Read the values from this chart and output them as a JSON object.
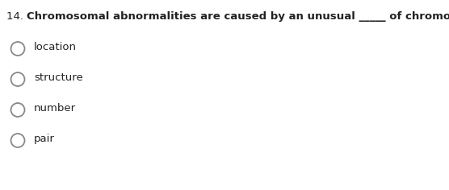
{
  "question_number": "14. ",
  "question_bold_text": "Chromosomal abnormalities are caused by an unusual _____ of chromosomes a person has.",
  "options": [
    "location",
    "structure",
    "number",
    "pair"
  ],
  "background_color": "#ffffff",
  "text_color": "#222222",
  "circle_edge_color": "#888888",
  "font_size_question": 9.5,
  "font_size_options": 9.5,
  "fig_width": 5.56,
  "fig_height": 2.36,
  "dpi": 100
}
